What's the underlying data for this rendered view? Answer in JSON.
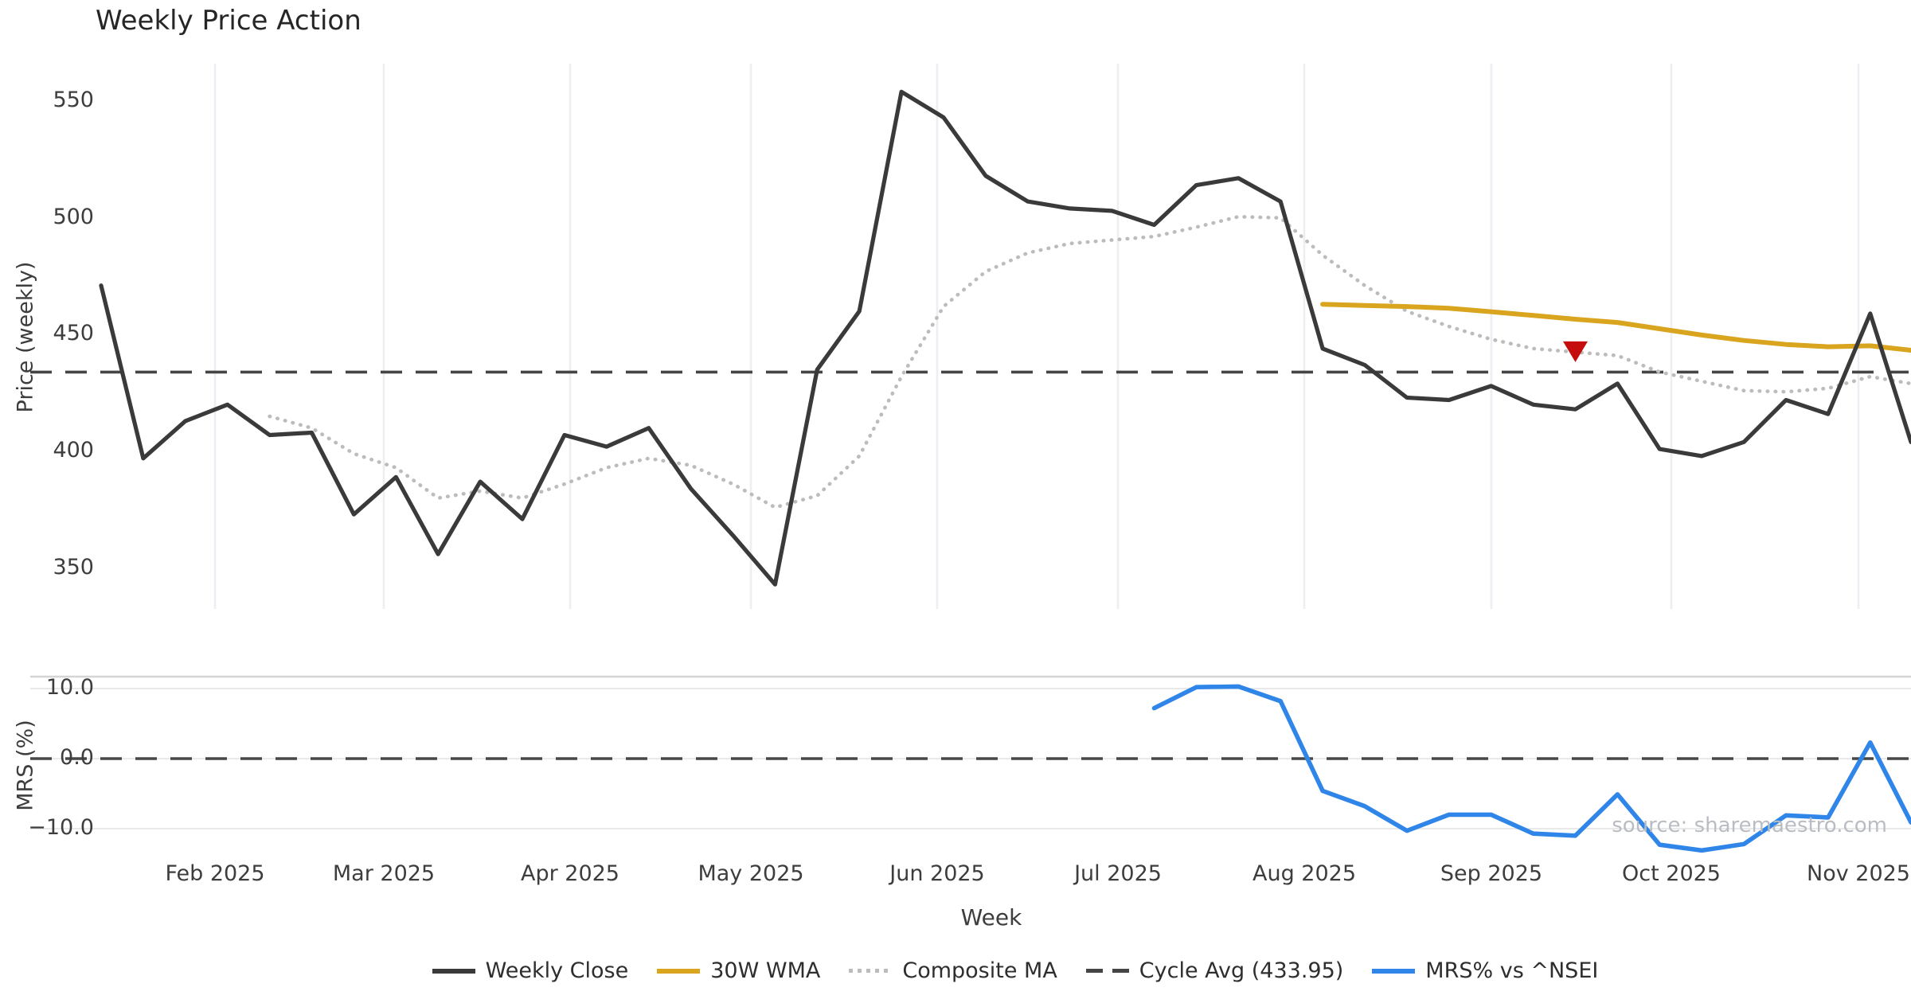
{
  "title": "Weekly Price Action",
  "xlabel": "Week",
  "source_text": "source: sharemaestro.com",
  "price_panel": {
    "ylabel": "Price (weekly)"
  },
  "mrs_panel": {
    "ylabel": "MRS (%)",
    "ytick_labels": [
      "10.0",
      "0.0",
      "−10.0"
    ]
  },
  "colors": {
    "weekly_close": "#3a3a3a",
    "wma30": "#d9a51e",
    "composite_ma": "#bcbcbc",
    "cycle_avg": "#454545",
    "mrs": "#2f86e8",
    "marker_red": "#c60d0d",
    "grid_vertical": "#eceef2",
    "grid_horizontal": "#e9e9e9",
    "panel_spine": "#d5d5d5"
  },
  "legend": [
    {
      "label": "Weekly Close",
      "style": "solid",
      "color": "#3a3a3a"
    },
    {
      "label": "30W WMA",
      "style": "solid",
      "color": "#d9a51e"
    },
    {
      "label": "Composite MA",
      "style": "dotted",
      "color": "#bcbcbc"
    },
    {
      "label": "Cycle Avg (433.95)",
      "style": "dashed",
      "color": "#454545"
    },
    {
      "label": "MRS% vs ^NSEI",
      "style": "solid",
      "color": "#2f86e8"
    }
  ],
  "chart_data": [
    {
      "type": "line",
      "panel": "price",
      "title": "Weekly Price Action",
      "ylabel": "Price (weekly)",
      "yticks": [
        550,
        500,
        450,
        400,
        350
      ],
      "ylim": [
        332,
        566
      ],
      "grid": "vertical-months",
      "xticklabels": [
        "Feb 2025",
        "Mar 2025",
        "Apr 2025",
        "May 2025",
        "Jun 2025",
        "Jul 2025",
        "Aug 2025",
        "Sep 2025",
        "Oct 2025",
        "Nov 2025"
      ],
      "x_dates": [
        "2025-01-13",
        "2025-01-20",
        "2025-01-27",
        "2025-02-03",
        "2025-02-10",
        "2025-02-17",
        "2025-02-24",
        "2025-03-03",
        "2025-03-10",
        "2025-03-17",
        "2025-03-24",
        "2025-03-31",
        "2025-04-07",
        "2025-04-14",
        "2025-04-21",
        "2025-04-28",
        "2025-05-05",
        "2025-05-12",
        "2025-05-19",
        "2025-05-26",
        "2025-06-02",
        "2025-06-09",
        "2025-06-16",
        "2025-06-23",
        "2025-06-30",
        "2025-07-07",
        "2025-07-14",
        "2025-07-21",
        "2025-07-28",
        "2025-08-04",
        "2025-08-11",
        "2025-08-18",
        "2025-08-25",
        "2025-09-01",
        "2025-09-08",
        "2025-09-15",
        "2025-09-22",
        "2025-09-29",
        "2025-10-06",
        "2025-10-13",
        "2025-10-20",
        "2025-10-27",
        "2025-11-03"
      ],
      "series": [
        {
          "name": "Weekly Close",
          "style": "solid",
          "color": "#3a3a3a",
          "start_index": 0,
          "values": [
            471,
            397,
            413,
            420,
            407,
            408,
            373,
            389,
            356,
            387,
            371,
            407,
            402,
            410,
            384,
            364,
            343,
            435,
            460,
            554,
            543,
            518,
            507,
            504,
            503,
            497,
            514,
            517,
            507,
            444,
            437,
            423,
            422,
            428,
            420,
            418,
            429,
            401,
            398,
            404,
            422,
            416,
            459
          ],
          "edge_value_at_right_crop": 404
        },
        {
          "name": "30W WMA",
          "style": "solid",
          "color": "#d9a51e",
          "start_index": 29,
          "values": [
            463,
            462.5,
            462,
            461.3,
            459.8,
            458.2,
            456.6,
            455.2,
            452.5,
            449.8,
            447.5,
            445.8,
            444.8,
            445.2
          ],
          "edge_value_at_right_crop": 443.3
        },
        {
          "name": "Composite MA",
          "style": "dotted",
          "color": "#bcbcbc",
          "start_index": 4,
          "values": [
            415,
            410,
            399,
            393,
            380,
            383,
            380,
            386,
            393,
            397,
            394,
            386,
            376,
            381,
            398,
            432,
            462,
            477,
            485,
            489,
            490.5,
            492,
            496,
            500.5,
            500,
            484,
            471,
            460,
            453.5,
            448,
            444,
            442.5,
            441,
            434,
            430,
            426,
            425.5,
            427,
            432
          ],
          "edge_value_at_right_crop": 429
        },
        {
          "name": "Cycle Avg",
          "style": "dashed",
          "color": "#454545",
          "constant": 433.95
        }
      ],
      "marker": {
        "date": "2025-09-15",
        "week_index": 35,
        "value": 443,
        "shape": "triangle-down",
        "color": "#c60d0d"
      }
    },
    {
      "type": "line",
      "panel": "mrs",
      "ylabel": "MRS (%)",
      "yticks": [
        10.0,
        0.0,
        -10.0
      ],
      "ylim": [
        -14.2,
        11.8
      ],
      "grid": "horizontal",
      "zero_line": 0.0,
      "series": [
        {
          "name": "MRS% vs ^NSEI",
          "style": "solid",
          "color": "#2f86e8",
          "start_index": 25,
          "start_date": "2025-07-07",
          "values": [
            7.2,
            10.2,
            10.3,
            8.2,
            -4.6,
            -6.8,
            -10.3,
            -8.0,
            -8.0,
            -10.7,
            -11.0,
            -5.1,
            -12.3,
            -13.1,
            -12.2,
            -8.1,
            -8.4,
            2.3
          ],
          "edge_value_at_right_crop": -9.1
        }
      ]
    }
  ]
}
